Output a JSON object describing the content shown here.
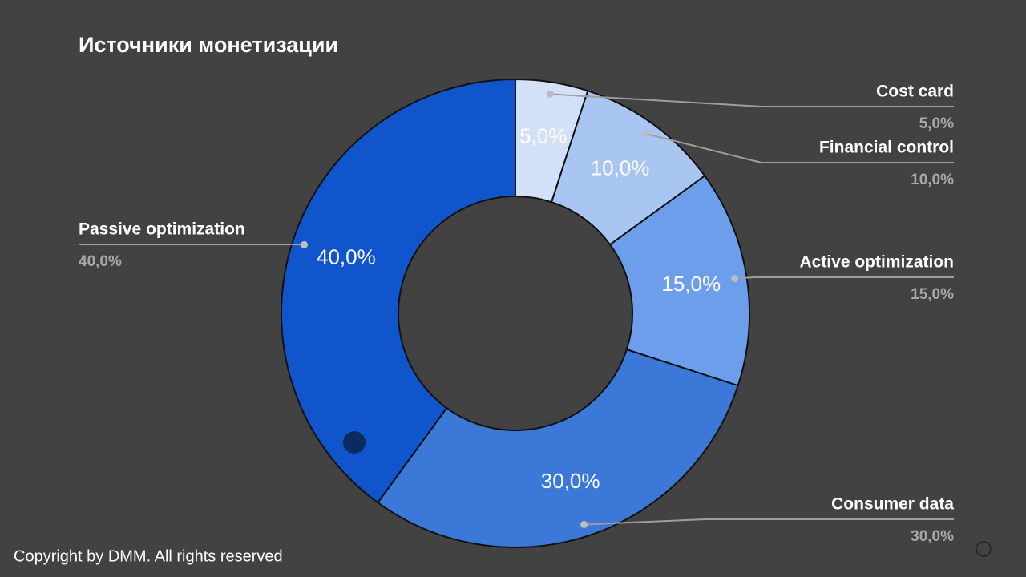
{
  "chart_data": {
    "type": "pie",
    "title": "Источники монетизации",
    "categories": [
      "Cost card",
      "Financial control",
      "Active optimization",
      "Consumer data",
      "Passive optimization"
    ],
    "values": [
      5,
      10,
      15,
      30,
      40
    ],
    "value_labels": [
      "5,0%",
      "10,0%",
      "15,0%",
      "30,0%",
      "40,0%"
    ],
    "colors": [
      "#d2e0f8",
      "#a9c6f2",
      "#6d9eeb",
      "#3c78d8",
      "#1155cc"
    ]
  },
  "footer": "Copyright by DMM. All rights reserved"
}
